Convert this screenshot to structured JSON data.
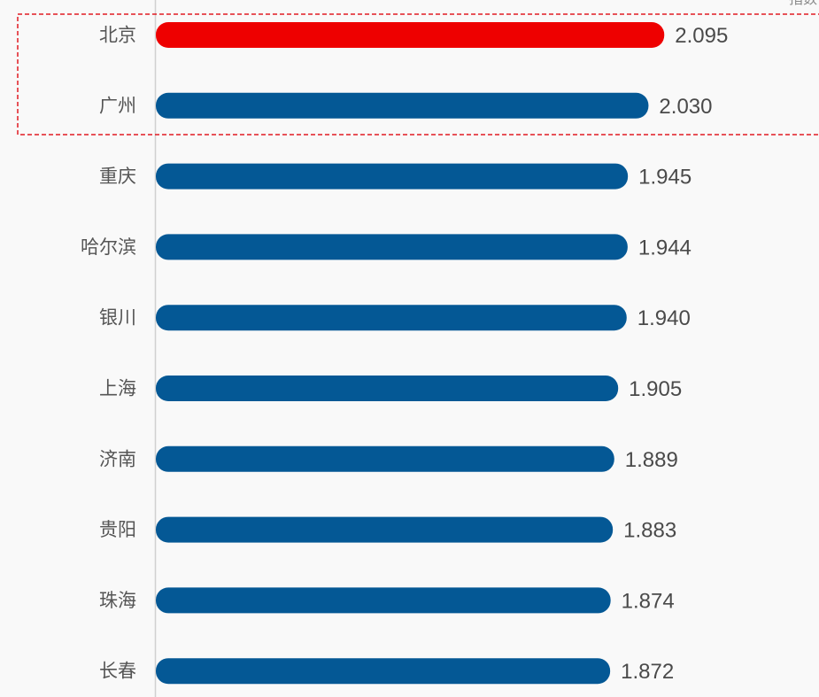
{
  "chart_data": {
    "type": "bar",
    "orientation": "horizontal",
    "categories": [
      "北京",
      "广州",
      "重庆",
      "哈尔滨",
      "银川",
      "上海",
      "济南",
      "贵阳",
      "珠海",
      "长春"
    ],
    "values": [
      2.095,
      2.03,
      1.945,
      1.944,
      1.94,
      1.905,
      1.889,
      1.883,
      1.874,
      1.872
    ],
    "value_labels": [
      "2.095",
      "2.030",
      "1.945",
      "1.944",
      "1.940",
      "1.905",
      "1.889",
      "1.883",
      "1.874",
      "1.872"
    ],
    "highlight_index": 0,
    "highlighted_group": [
      "北京",
      "广州"
    ],
    "title": "",
    "top_right_note": "指数",
    "xlabel": "",
    "ylabel": "",
    "xlim": [
      0,
      2.3
    ],
    "grid": false,
    "legend": "none",
    "colors": {
      "bar": "#045895",
      "highlight_bar": "#ee0000",
      "highlight_box": "#e11b22",
      "axis": "#d0d0d0",
      "background": "#f9f9f9"
    }
  }
}
